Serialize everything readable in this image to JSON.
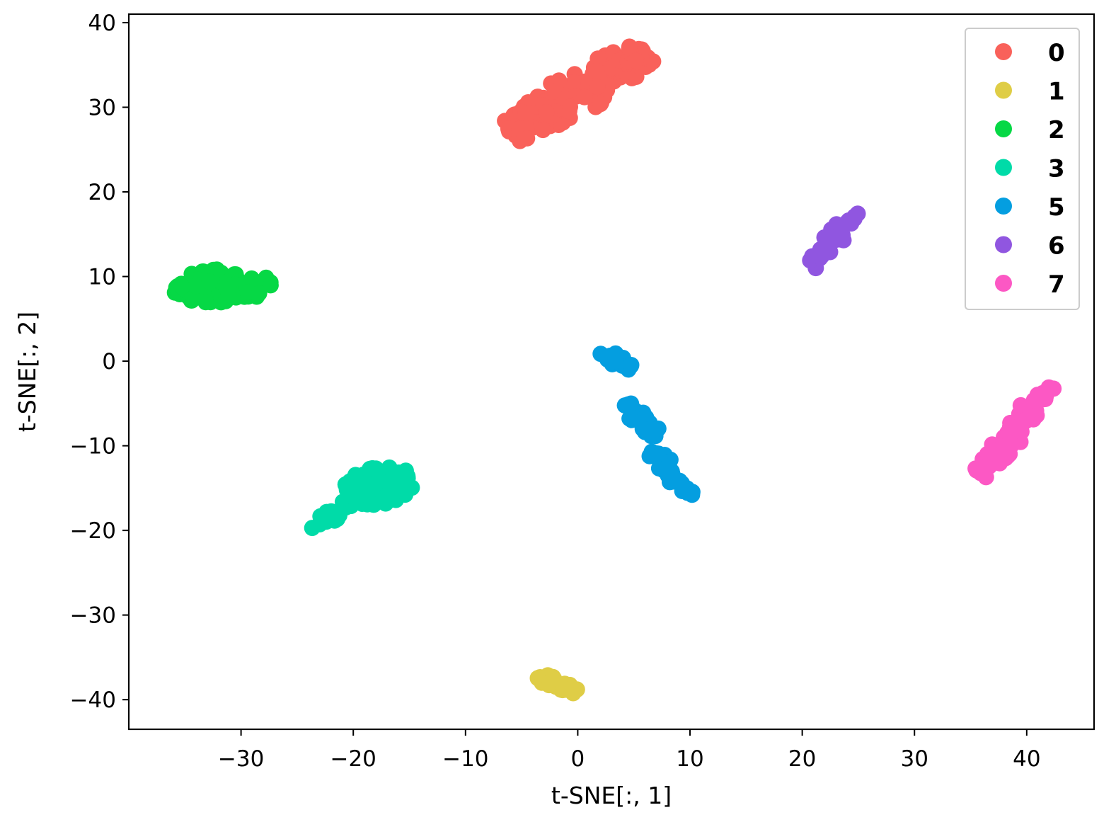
{
  "chart_data": {
    "type": "scatter",
    "xlabel": "t-SNE[:, 1]",
    "ylabel": "t-SNE[:, 2]",
    "xlim": [
      -40,
      46
    ],
    "ylim": [
      -43.5,
      41
    ],
    "xticks": [
      -30,
      -20,
      -10,
      0,
      10,
      20,
      30,
      40
    ],
    "yticks": [
      40,
      30,
      20,
      10,
      0,
      -10,
      -20,
      -30,
      -40
    ],
    "xtick_labels": [
      "−30",
      "−20",
      "−10",
      "0",
      "10",
      "20",
      "30",
      "40"
    ],
    "ytick_labels": [
      "40",
      "30",
      "20",
      "10",
      "0",
      "−10",
      "−20",
      "−30",
      "−40"
    ],
    "grid": false,
    "legend_position": "top-right",
    "series": [
      {
        "name": "0",
        "color": "#f9615a",
        "clusters": [
          {
            "x1": -6.0,
            "y1": 27.0,
            "x2": 6.0,
            "y2": 36.5,
            "width": 2.6,
            "n": 170
          }
        ]
      },
      {
        "name": "1",
        "color": "#dfcd46",
        "clusters": [
          {
            "x1": -3.5,
            "y1": -37.3,
            "x2": 0.0,
            "y2": -39.2,
            "width": 0.9,
            "n": 20
          }
        ]
      },
      {
        "name": "2",
        "color": "#06d845",
        "clusters": [
          {
            "x1": -36.0,
            "y1": 8.6,
            "x2": -27.0,
            "y2": 9.2,
            "width": 2.2,
            "n": 90
          }
        ]
      },
      {
        "name": "3",
        "color": "#00dba8",
        "clusters": [
          {
            "x1": -24.0,
            "y1": -19.8,
            "x2": -19.5,
            "y2": -16.0,
            "width": 0.9,
            "n": 22
          },
          {
            "x1": -20.5,
            "y1": -15.5,
            "x2": -15.0,
            "y2": -14.0,
            "width": 2.4,
            "n": 90
          }
        ]
      },
      {
        "name": "5",
        "color": "#049ee0",
        "clusters": [
          {
            "x1": 2.0,
            "y1": 0.8,
            "x2": 4.8,
            "y2": -0.6,
            "width": 0.9,
            "n": 24
          },
          {
            "x1": 4.5,
            "y1": -5.0,
            "x2": 7.0,
            "y2": -9.0,
            "width": 1.0,
            "n": 26
          },
          {
            "x1": 6.5,
            "y1": -10.5,
            "x2": 10.2,
            "y2": -16.0,
            "width": 1.0,
            "n": 30
          }
        ]
      },
      {
        "name": "6",
        "color": "#9056e0",
        "clusters": [
          {
            "x1": 20.8,
            "y1": 11.2,
            "x2": 24.8,
            "y2": 17.6,
            "width": 0.9,
            "n": 30
          }
        ]
      },
      {
        "name": "7",
        "color": "#fc58c4",
        "clusters": [
          {
            "x1": 35.8,
            "y1": -13.4,
            "x2": 42.0,
            "y2": -3.0,
            "width": 1.3,
            "n": 70
          }
        ]
      }
    ]
  }
}
